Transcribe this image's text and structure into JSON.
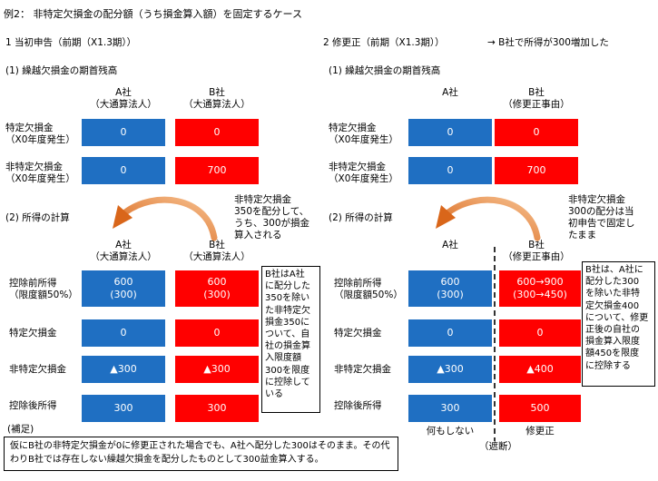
{
  "title": "例2：  非特定欠損金の配分額（うち損金算入額）を固定するケース",
  "left": {
    "heading": "1   当初申告（前期（X1.3期））",
    "sec1": "(1) 繰越欠損金の期首残高",
    "colA": [
      "A社",
      "（大通算法人）"
    ],
    "colB": [
      "B社",
      "（大通算法人）"
    ],
    "row1": [
      "特定欠損金",
      "（X0年度発生）"
    ],
    "row2": [
      "非特定欠損金",
      "（X0年度発生）"
    ],
    "row1_a": "0",
    "row1_b": "0",
    "row2_a": "0",
    "row2_b": "700",
    "sec2": "(2) 所得の計算",
    "arrow_note": [
      "非特定欠損金",
      "350を配分して、",
      "うち、300が損金",
      "算入される"
    ],
    "colA2": [
      "A社",
      "（大通算法人）"
    ],
    "colB2": [
      "B社",
      "（大通算法人）"
    ],
    "r1": [
      "控除前所得",
      "（限度額50%）"
    ],
    "r2": "特定欠損金",
    "r3": "非特定欠損金",
    "r4": "控除後所得",
    "r1_a": [
      "600",
      "(300)"
    ],
    "r1_b": [
      "600",
      "(300)"
    ],
    "r2_a": "0",
    "r2_b": "0",
    "r3_a": "▲300",
    "r3_b": "▲300",
    "r4_a": "300",
    "r4_b": "300",
    "side_note": [
      "B社はA社",
      "に配分した",
      "350を除い",
      "た非特定欠",
      "損金350に",
      "ついて、自",
      "社の損金算",
      "入限度額",
      "300を限度",
      "に控除して",
      "いる"
    ],
    "supp_label": "(補足)",
    "footnote": [
      "仮にB社の非特定欠損金が0に修更正された場合でも、A社へ配分した300はそのまま。その代",
      "わりB社では存在しない繰越欠損金を配分したものとして300益金算入する。"
    ]
  },
  "right": {
    "heading": "2   修更正（前期（X1.3期））",
    "heading_arrow": "→ B社で所得が300増加した",
    "sec1": "(1) 繰越欠損金の期首残高",
    "colA": [
      "A社"
    ],
    "colB": [
      "B社",
      "（修更正事由）"
    ],
    "row1": [
      "特定欠損金",
      "（X0年度発生）"
    ],
    "row2": [
      "非特定欠損金",
      "（X0年度発生）"
    ],
    "row1_a": "0",
    "row1_b": "0",
    "row2_a": "0",
    "row2_b": "700",
    "sec2": "(2) 所得の計算",
    "arrow_note": [
      "非特定欠損金",
      "300の配分は当",
      "初申告で固定し",
      "たまま"
    ],
    "colA2": [
      "A社"
    ],
    "colB2": [
      "B社",
      "（修更正事由）"
    ],
    "r1": [
      "控除前所得",
      "（限度額50%）"
    ],
    "r2": "特定欠損金",
    "r3": "非特定欠損金",
    "r4": "控除後所得",
    "r1_a": [
      "600",
      "(300)"
    ],
    "r1_b": [
      "600→900",
      "(300→450)"
    ],
    "r2_a": "0",
    "r2_b": "0",
    "r3_a": "▲300",
    "r3_b": "▲400",
    "r4_a": "300",
    "r4_b": "500",
    "side_note": [
      "B社は、A社に",
      "配分した300",
      "を除いた非特",
      "定欠損金400",
      "について、修更",
      "正後の自社の",
      "損金算入限度",
      "額450を限度",
      "に控除する"
    ],
    "below_a": "何もしない",
    "below_cut": "（遮断）",
    "below_b": "修更正"
  },
  "colors": {
    "blue": "#1f6fc2",
    "red": "#ff0000",
    "arrow": "#e07a1f"
  }
}
